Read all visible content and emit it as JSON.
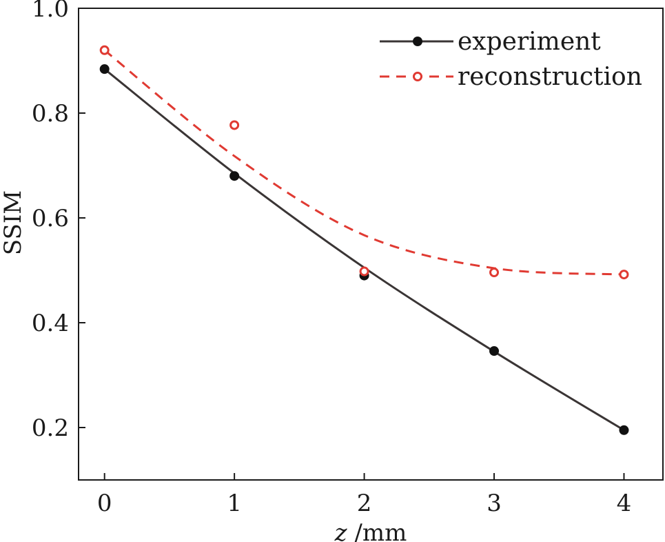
{
  "chart_data": {
    "type": "line",
    "xlabel_var": "z",
    "xlabel_unit": " /mm",
    "ylabel": "SSIM",
    "xlim": [
      -0.2,
      4.3
    ],
    "ylim": [
      0.1,
      1.0
    ],
    "x_ticks": [
      "0",
      "1",
      "2",
      "3",
      "4"
    ],
    "y_ticks": [
      "0.2",
      "0.4",
      "0.6",
      "0.8",
      "1.0"
    ],
    "grid": false,
    "legend_position": "top-right",
    "series": [
      {
        "name": "experiment",
        "color": "#3a3535",
        "marker": "filled-circle",
        "line_style": "solid",
        "x": [
          0,
          1,
          2,
          3,
          4
        ],
        "y": [
          0.884,
          0.68,
          0.49,
          0.346,
          0.195
        ],
        "fit_y": [
          0.884,
          0.685,
          0.505,
          0.345,
          0.195
        ]
      },
      {
        "name": "reconstruction",
        "color": "#e03a32",
        "marker": "open-circle",
        "line_style": "dashed",
        "x": [
          0,
          1,
          2,
          3,
          4
        ],
        "y": [
          0.92,
          0.777,
          0.498,
          0.496,
          0.492
        ],
        "fit_y": [
          0.92,
          0.718,
          0.567,
          0.504,
          0.492
        ]
      }
    ]
  }
}
